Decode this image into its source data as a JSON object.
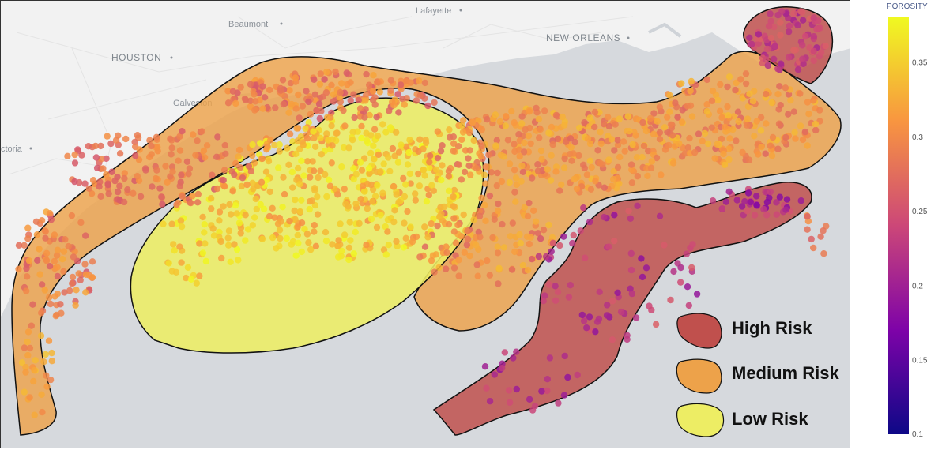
{
  "map": {
    "cities": [
      {
        "name": "Lafayette",
        "marker": true
      },
      {
        "name": "Beaumont",
        "marker": true
      },
      {
        "name": "NEW ORLEANS",
        "marker": true
      },
      {
        "name": "HOUSTON",
        "marker": true
      },
      {
        "name": "Galveston",
        "marker": false
      },
      {
        "name": "ctoria",
        "marker": true
      }
    ],
    "zones": [
      {
        "id": "high",
        "label": "High Risk",
        "color": "#c0504d"
      },
      {
        "id": "medium",
        "label": "Medium Risk",
        "color": "#eda24a"
      },
      {
        "id": "low",
        "label": "Low Risk",
        "color": "#eded64"
      }
    ]
  },
  "colorbar": {
    "title": "POROSITY",
    "min": 0.1,
    "max": 0.38,
    "ticks": [
      "0.35",
      "0.3",
      "0.25",
      "0.2",
      "0.15",
      "0.1"
    ],
    "tick_values": [
      0.35,
      0.3,
      0.25,
      0.2,
      0.15,
      0.1
    ],
    "colors": [
      "#0d0887",
      "#7e03a8",
      "#cc4778",
      "#f89540",
      "#f0f921"
    ]
  }
}
